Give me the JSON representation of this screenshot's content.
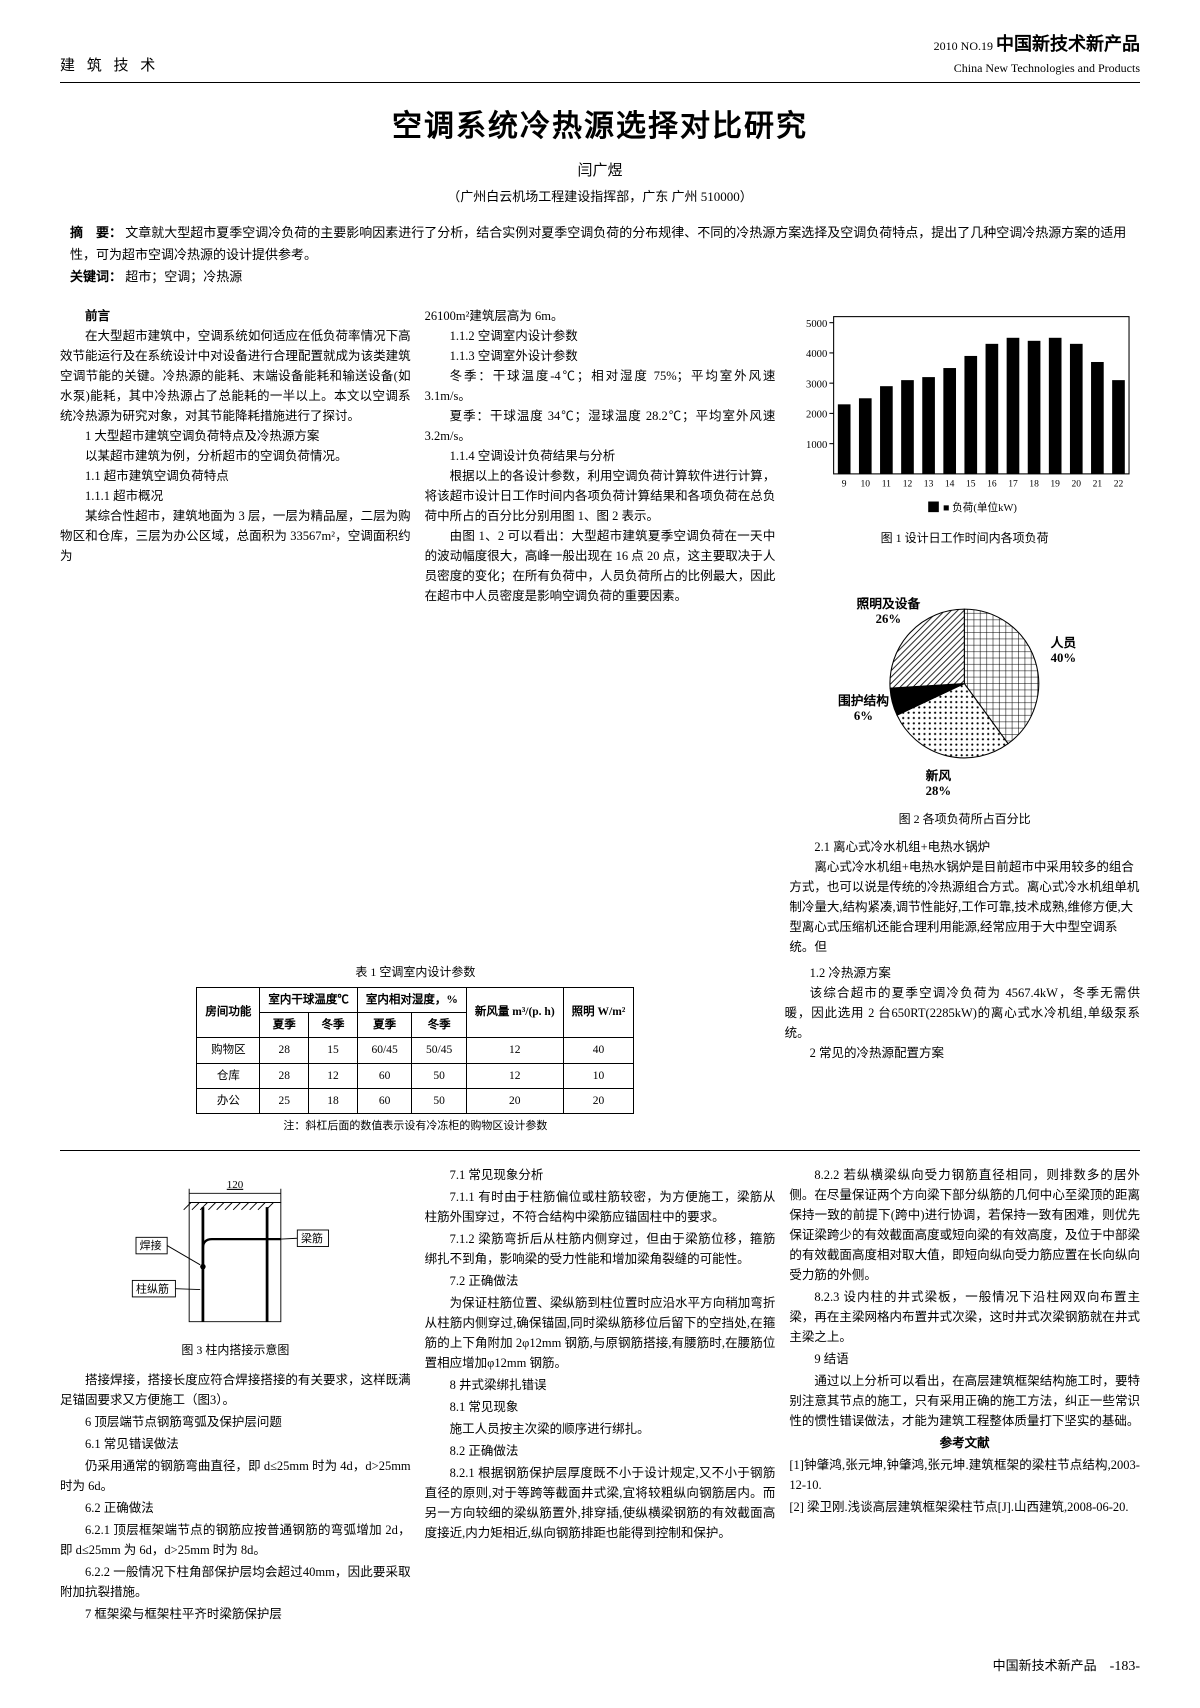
{
  "header": {
    "section": "建 筑 技 术",
    "issue_line": "2010 NO.19",
    "english_name": "China New Technologies and Products",
    "logo_text": "中国新技术新产品"
  },
  "title": "空调系统冷热源选择对比研究",
  "author": "闫广煜",
  "affiliation": "（广州白云机场工程建设指挥部，广东  广州  510000）",
  "abstract_label": "摘　要：",
  "abstract_body": "文章就大型超市夏季空调冷负荷的主要影响因素进行了分析，结合实例对夏季空调负荷的分布规律、不同的冷热源方案选择及空调负荷特点，提出了几种空调冷热源方案的适用性，可为超市空调冷热源的设计提供参考。",
  "keywords_label": "关键词：",
  "keywords_body": "超市；空调；冷热源",
  "col1": {
    "p0h": "前言",
    "p1": "在大型超市建筑中，空调系统如何适应在低负荷率情况下高效节能运行及在系统设计中对设备进行合理配置就成为该类建筑空调节能的关键。冷热源的能耗、末端设备能耗和输送设备(如水泵)能耗，其中冷热源占了总能耗的一半以上。本文以空调系统冷热源为研究对象，对其节能降耗措施进行了探讨。",
    "p2h": "1 大型超市建筑空调负荷特点及冷热源方案",
    "p3": "以某超市建筑为例，分析超市的空调负荷情况。",
    "p4": "1.1 超市建筑空调负荷特点",
    "p5": "1.1.1 超市概况",
    "p6": "某综合性超市，建筑地面为 3 层，一层为精品屋，二层为购物区和仓库，三层为办公区域，总面积为 33567m²，空调面积约为"
  },
  "col2": {
    "p1": "26100m²建筑层高为 6m。",
    "p2": "1.1.2 空调室内设计参数",
    "p3": "1.1.3 空调室外设计参数",
    "p4": "冬季：干球温度-4℃；相对湿度 75%；平均室外风速 3.1m/s。",
    "p5": "夏季：干球温度 34℃；湿球温度 28.2℃；平均室外风速 3.2m/s。",
    "p6": "1.1.4 空调设计负荷结果与分析",
    "p7": "根据以上的各设计参数，利用空调负荷计算软件进行计算，将该超市设计日工作时间内各项负荷计算结果和各项负荷在总负荷中所占的百分比分别用图 1、图 2 表示。",
    "p8": "由图 1、2 可以看出：大型超市建筑夏季空调负荷在一天中的波动幅度很大，高峰一般出现在 16 点 20 点，这主要取决于人员密度的变化；在所有负荷中，人员负荷所占的比例最大，因此在超市中人员密度是影响空调负荷的重要因素。",
    "p9": "1.2 冷热源方案",
    "p10": "该综合超市的夏季空调冷负荷为 4567.4kW，冬季无需供暖，因此选用 2 台650RT(2285kW)的离心式水冷机组,单级泵系统。",
    "p11": "2 常见的冷热源配置方案"
  },
  "col3": {
    "p1": "2.1 离心式冷水机组+电热水锅炉",
    "p2": "离心式冷水机组+电热水锅炉是目前超市中采用较多的组合方式，也可以说是传统的冷热源组合方式。离心式冷水机组单机制冷量大,结构紧凑,调节性能好,工作可靠,技术成熟,维修方便,大型离心式压缩机还能合理利用能源,经常应用于大中型空调系统。但"
  },
  "table1": {
    "caption": "表 1 空调室内设计参数",
    "headers_top": [
      "房间功能",
      "室内干球温度℃",
      "室内相对湿度，%",
      "新风量 m³/(p. h)",
      "照明 W/m²"
    ],
    "headers_sub": [
      "",
      "夏季",
      "冬季",
      "夏季",
      "冬季",
      "",
      ""
    ],
    "rows": [
      [
        "购物区",
        "28",
        "15",
        "60/45",
        "50/45",
        "12",
        "40"
      ],
      [
        "仓库",
        "28",
        "12",
        "60",
        "50",
        "12",
        "10"
      ],
      [
        "办公",
        "25",
        "18",
        "60",
        "50",
        "20",
        "20"
      ]
    ],
    "note": "注：斜杠后面的数值表示设有冷冻柜的购物区设计参数"
  },
  "fig1": {
    "caption": "图 1 设计日工作时间内各项负荷",
    "legend": "■ 负荷(单位kW)",
    "x_ticks": [
      "9",
      "10",
      "11",
      "12",
      "13",
      "14",
      "15",
      "16",
      "17",
      "18",
      "19",
      "20",
      "21",
      "22"
    ],
    "y_ticks": [
      "1000",
      "2000",
      "3000",
      "4000",
      "5000"
    ],
    "values": [
      2300,
      2500,
      2900,
      3100,
      3200,
      3500,
      3900,
      4300,
      4500,
      4400,
      4500,
      4300,
      3700,
      3100
    ],
    "ylim": [
      0,
      5200
    ],
    "bar_color": "#000000",
    "bg": "#ffffff"
  },
  "fig2": {
    "caption": "图 2 各项负荷所占百分比",
    "slices": [
      {
        "label": "人员",
        "pct": 40,
        "value": "40%",
        "color": "#ffffff",
        "hatch": "grid"
      },
      {
        "label": "新风",
        "pct": 28,
        "value": "28%",
        "color": "#eeeeee",
        "hatch": "dots"
      },
      {
        "label": "围护结构",
        "pct": 6,
        "value": "6%",
        "color": "#000000",
        "hatch": "solid"
      },
      {
        "label": "照明及设备",
        "pct": 26,
        "value": "26%",
        "color": "#ffffff",
        "hatch": "diag"
      }
    ]
  },
  "fig3": {
    "caption": "图 3 柱内搭接示意图",
    "dim": "120",
    "labels": {
      "weld": "焊接",
      "beambar": "梁筋",
      "colbar": "柱纵筋"
    }
  },
  "lower_left": {
    "p1": "搭接焊接，搭接长度应符合焊接搭接的有关要求，这样既满足锚固要求又方便施工（图3）。",
    "p2h": "6 顶层端节点钢筋弯弧及保护层问题",
    "p3h": "6.1 常见错误做法",
    "p4": "仍采用通常的钢筋弯曲直径，即 d≤25mm 时为 4d，d>25mm 时为 6d。",
    "p5h": "6.2 正确做法",
    "p6": "6.2.1 顶层框架端节点的钢筋应按普通钢筋的弯弧增加 2d，即 d≤25mm 为 6d，d>25mm 时为 8d。",
    "p7": "6.2.2 一般情况下柱角部保护层均会超过40mm，因此要采取附加抗裂措施。",
    "p8h": "7 框架梁与框架柱平齐时梁筋保护层"
  },
  "lower_mid": {
    "p1h": "7.1 常见现象分析",
    "p2": "7.1.1 有时由于柱筋偏位或柱筋较密，为方便施工，梁筋从柱筋外围穿过，不符合结构中梁筋应锚固柱中的要求。",
    "p3": "7.1.2 梁筋弯折后从柱筋内侧穿过，但由于梁筋位移，箍筋绑扎不到角，影响梁的受力性能和增加梁角裂缝的可能性。",
    "p4h": "7.2 正确做法",
    "p5": "为保证柱筋位置、梁纵筋到柱位置时应沿水平方向稍加弯折从柱筋内侧穿过,确保锚固,同时梁纵筋移位后留下的空挡处,在箍筋的上下角附加 2φ12mm 钢筋,与原钢筋搭接,有腰筋时,在腰筋位置相应增加φ12mm 钢筋。",
    "p6h": "8 井式梁绑扎错误",
    "p7h": "8.1 常见现象",
    "p8": "施工人员按主次梁的顺序进行绑扎。",
    "p9h": "8.2 正确做法",
    "p10": "8.2.1 根据钢筋保护层厚度既不小于设计规定,又不小于钢筋直径的原则,对于等跨等截面井式梁,宜将较粗纵向钢筋居内。而另一方向较细的梁纵筋置外,排穿插,使纵横梁钢筋的有效截面高度接近,内力矩相近,纵向钢筋排距也能得到控制和保护。"
  },
  "lower_right": {
    "p1": "8.2.2 若纵横梁纵向受力钢筋直径相同，则排数多的居外侧。在尽量保证两个方向梁下部分纵筋的几何中心至梁顶的距离保持一致的前提下(跨中)进行协调，若保持一致有困难，则优先保证梁跨少的有效截面高度或短向梁的有效高度，及位于中部梁的有效截面高度相对取大值，即短向纵向受力筋应置在长向纵向受力筋的外侧。",
    "p2": "8.2.3 设内柱的井式梁板，一般情况下沿柱网双向布置主梁，再在主梁网格内布置井式次梁，这时井式次梁钢筋就在井式主梁之上。",
    "p3h": "9 结语",
    "p4": "通过以上分析可以看出，在高层建筑框架结构施工时，要特别注意其节点的施工，只有采用正确的施工方法，纠正一些常识性的惯性错误做法，才能为建筑工程整体质量打下坚实的基础。",
    "refs_h": "参考文献",
    "r1": "[1]钟肇鸿,张元坤,钟肇鸿,张元坤.建筑框架的梁柱节点结构,2003-12-10.",
    "r2": "[2] 梁卫刚.浅谈高层建筑框架梁柱节点[J].山西建筑,2008-06-20."
  },
  "footer": {
    "left": "",
    "right": "中国新技术新产品",
    "pagenum": "-183-"
  }
}
